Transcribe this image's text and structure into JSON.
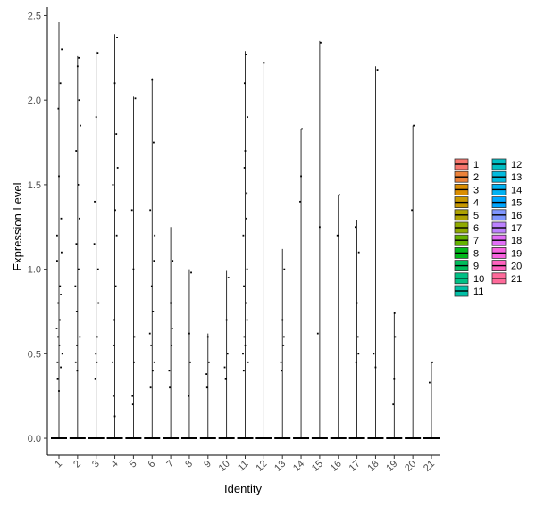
{
  "chart_data": {
    "type": "violin",
    "xlabel": "Identity",
    "ylabel": "Expression Level",
    "ylim": [
      -0.1,
      2.55
    ],
    "yticks": [
      "0.0",
      "0.5",
      "1.0",
      "1.5",
      "2.0",
      "2.5"
    ],
    "categories": [
      "1",
      "2",
      "3",
      "4",
      "5",
      "6",
      "7",
      "8",
      "9",
      "10",
      "11",
      "12",
      "13",
      "14",
      "15",
      "16",
      "17",
      "18",
      "19",
      "20",
      "21"
    ],
    "colors": [
      "#F8766D",
      "#EC8239",
      "#DB8E00",
      "#C79800",
      "#AEA200",
      "#8FAA00",
      "#64B200",
      "#00B81B",
      "#00BD5C",
      "#00C085",
      "#00C1A7",
      "#00BFC4",
      "#00BADE",
      "#00B2F3",
      "#00A6FF",
      "#7F96FF",
      "#BC81FF",
      "#E26EF7",
      "#F863DF",
      "#FF62BF",
      "#FF6A9A"
    ],
    "legend_position": "right",
    "grid": false,
    "max_values": [
      2.46,
      2.26,
      2.29,
      2.39,
      2.02,
      2.13,
      1.25,
      1.0,
      0.62,
      0.99,
      2.29,
      2.22,
      1.12,
      1.83,
      2.35,
      1.44,
      1.29,
      2.2,
      0.75,
      1.85,
      0.45
    ],
    "points": [
      [
        [
          0.92,
          0.45
        ],
        [
          0.95,
          0.6
        ],
        [
          1.05,
          0.7
        ],
        [
          1.1,
          0.85
        ],
        [
          0.9,
          1.05
        ],
        [
          1.12,
          1.3
        ],
        [
          1.0,
          1.55
        ],
        [
          0.97,
          1.95
        ],
        [
          1.08,
          2.1
        ],
        [
          1.15,
          2.3
        ],
        [
          0.93,
          0.35
        ],
        [
          1.02,
          0.55
        ],
        [
          1.18,
          0.5
        ],
        [
          0.88,
          0.65
        ],
        [
          1.06,
          0.9
        ],
        [
          1.14,
          1.1
        ],
        [
          0.96,
          0.8
        ],
        [
          1.1,
          0.42
        ],
        [
          1.0,
          0.28
        ],
        [
          0.9,
          1.2
        ]
      ],
      [
        [
          1.9,
          0.45
        ],
        [
          1.95,
          0.75
        ],
        [
          2.05,
          1.0
        ],
        [
          2.1,
          1.3
        ],
        [
          1.92,
          1.7
        ],
        [
          2.08,
          2.0
        ],
        [
          2.0,
          2.2
        ],
        [
          1.96,
          0.55
        ],
        [
          2.12,
          0.6
        ],
        [
          1.88,
          0.9
        ],
        [
          2.03,
          1.5
        ],
        [
          2.15,
          1.85
        ],
        [
          1.98,
          0.4
        ],
        [
          2.06,
          2.25
        ],
        [
          1.93,
          1.15
        ]
      ],
      [
        [
          2.95,
          0.35
        ],
        [
          3.05,
          0.6
        ],
        [
          3.1,
          1.0
        ],
        [
          2.92,
          1.4
        ],
        [
          3.0,
          1.9
        ],
        [
          3.08,
          2.28
        ],
        [
          2.98,
          0.5
        ],
        [
          3.12,
          0.8
        ],
        [
          2.9,
          1.15
        ],
        [
          3.03,
          0.45
        ]
      ],
      [
        [
          3.92,
          0.25
        ],
        [
          3.95,
          0.55
        ],
        [
          4.05,
          0.9
        ],
        [
          4.1,
          1.2
        ],
        [
          3.9,
          1.5
        ],
        [
          4.08,
          1.8
        ],
        [
          4.0,
          2.1
        ],
        [
          4.12,
          2.37
        ],
        [
          3.97,
          0.7
        ],
        [
          4.02,
          1.35
        ],
        [
          3.88,
          0.45
        ],
        [
          4.15,
          1.6
        ],
        [
          4.0,
          0.13
        ]
      ],
      [
        [
          4.95,
          0.25
        ],
        [
          5.05,
          0.6
        ],
        [
          5.0,
          1.0
        ],
        [
          4.92,
          1.35
        ],
        [
          5.1,
          2.01
        ],
        [
          5.03,
          0.45
        ],
        [
          4.97,
          0.2
        ]
      ],
      [
        [
          5.92,
          0.3
        ],
        [
          5.95,
          0.55
        ],
        [
          6.05,
          0.75
        ],
        [
          6.1,
          1.05
        ],
        [
          5.9,
          1.35
        ],
        [
          6.08,
          1.75
        ],
        [
          6.0,
          2.12
        ],
        [
          6.12,
          0.45
        ],
        [
          5.98,
          0.9
        ],
        [
          6.03,
          0.4
        ],
        [
          5.88,
          0.62
        ],
        [
          6.14,
          1.2
        ]
      ],
      [
        [
          6.95,
          0.3
        ],
        [
          7.05,
          0.55
        ],
        [
          7.0,
          0.8
        ],
        [
          7.1,
          1.05
        ],
        [
          6.92,
          0.4
        ],
        [
          7.08,
          0.65
        ]
      ],
      [
        [
          7.95,
          0.25
        ],
        [
          8.05,
          0.45
        ],
        [
          8.0,
          0.62
        ],
        [
          8.1,
          0.98
        ]
      ],
      [
        [
          8.95,
          0.3
        ],
        [
          9.05,
          0.45
        ],
        [
          9.0,
          0.6
        ],
        [
          8.92,
          0.38
        ]
      ],
      [
        [
          9.95,
          0.35
        ],
        [
          10.05,
          0.5
        ],
        [
          10.0,
          0.7
        ],
        [
          10.1,
          0.95
        ],
        [
          9.9,
          0.42
        ]
      ],
      [
        [
          10.92,
          0.4
        ],
        [
          10.95,
          0.6
        ],
        [
          11.05,
          0.8
        ],
        [
          11.1,
          1.0
        ],
        [
          10.9,
          1.2
        ],
        [
          11.08,
          1.45
        ],
        [
          11.0,
          1.7
        ],
        [
          11.12,
          1.9
        ],
        [
          10.97,
          2.1
        ],
        [
          11.03,
          2.27
        ],
        [
          10.88,
          0.5
        ],
        [
          11.15,
          0.45
        ],
        [
          10.93,
          0.9
        ],
        [
          11.07,
          1.3
        ],
        [
          11.0,
          0.55
        ],
        [
          10.96,
          1.6
        ],
        [
          11.1,
          0.7
        ]
      ],
      [
        [
          12.0,
          2.22
        ]
      ],
      [
        [
          12.95,
          0.4
        ],
        [
          13.05,
          0.55
        ],
        [
          13.0,
          0.7
        ],
        [
          13.1,
          1.0
        ],
        [
          12.92,
          0.45
        ],
        [
          13.08,
          0.6
        ]
      ],
      [
        [
          13.95,
          1.4
        ],
        [
          14.05,
          1.83
        ],
        [
          14.0,
          1.55
        ]
      ],
      [
        [
          14.9,
          0.62
        ],
        [
          15.0,
          1.25
        ],
        [
          15.05,
          2.34
        ]
      ],
      [
        [
          15.95,
          1.2
        ],
        [
          16.05,
          1.44
        ]
      ],
      [
        [
          16.95,
          0.45
        ],
        [
          17.05,
          0.6
        ],
        [
          17.0,
          0.8
        ],
        [
          17.1,
          1.1
        ],
        [
          16.92,
          1.25
        ],
        [
          17.08,
          0.5
        ]
      ],
      [
        [
          17.9,
          0.5
        ],
        [
          18.0,
          0.42
        ],
        [
          18.1,
          2.18
        ]
      ],
      [
        [
          18.95,
          0.2
        ],
        [
          19.0,
          0.35
        ],
        [
          19.05,
          0.6
        ],
        [
          19.02,
          0.74
        ]
      ],
      [
        [
          19.95,
          1.35
        ],
        [
          20.05,
          1.85
        ]
      ],
      [
        [
          20.9,
          0.33
        ],
        [
          21.05,
          0.45
        ]
      ]
    ]
  }
}
